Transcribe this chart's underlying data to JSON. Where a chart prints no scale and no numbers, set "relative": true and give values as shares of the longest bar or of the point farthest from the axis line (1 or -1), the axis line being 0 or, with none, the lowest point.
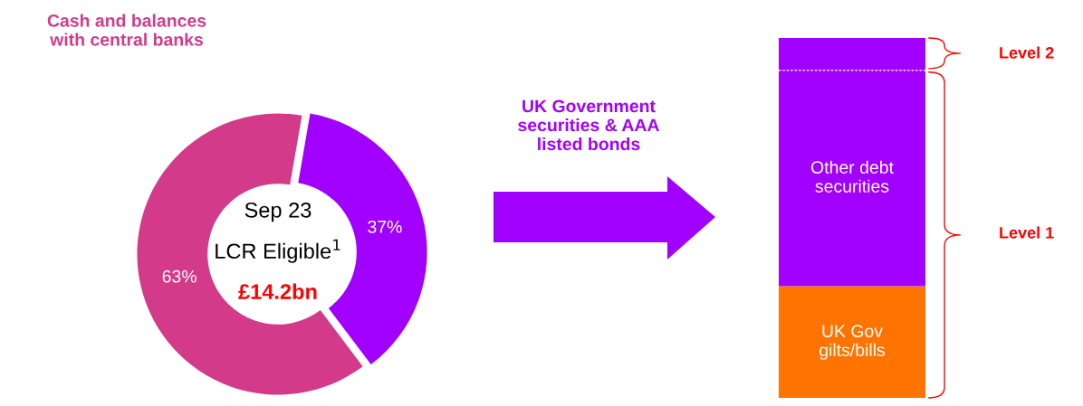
{
  "chart_data": [
    {
      "type": "donut",
      "categories": [
        "Cash and balances with central banks",
        "UK Government securities & AAA listed bonds"
      ],
      "values": [
        63,
        37
      ],
      "colors": [
        "#d43a8a",
        "#a100ff"
      ],
      "value_labels": [
        "63%",
        "37%"
      ],
      "annotations": [
        "Sep 23",
        "LCR Eligible$^{1}$",
        "£14.2bn"
      ]
    },
    {
      "type": "bar",
      "stacked": true,
      "relative": true,
      "categories": [
        null
      ],
      "series": [
        {
          "name": "UK Gov gilts/bills",
          "color": "#ff7300",
          "values": [
            0.31
          ]
        },
        {
          "name": "Other debt securities",
          "color": "#a100ff",
          "values": [
            0.6
          ]
        },
        {
          "color": "#a100ff",
          "values": [
            0.09
          ]
        }
      ],
      "annotations": [
        "Level 2",
        "Level 1"
      ]
    }
  ]
}
